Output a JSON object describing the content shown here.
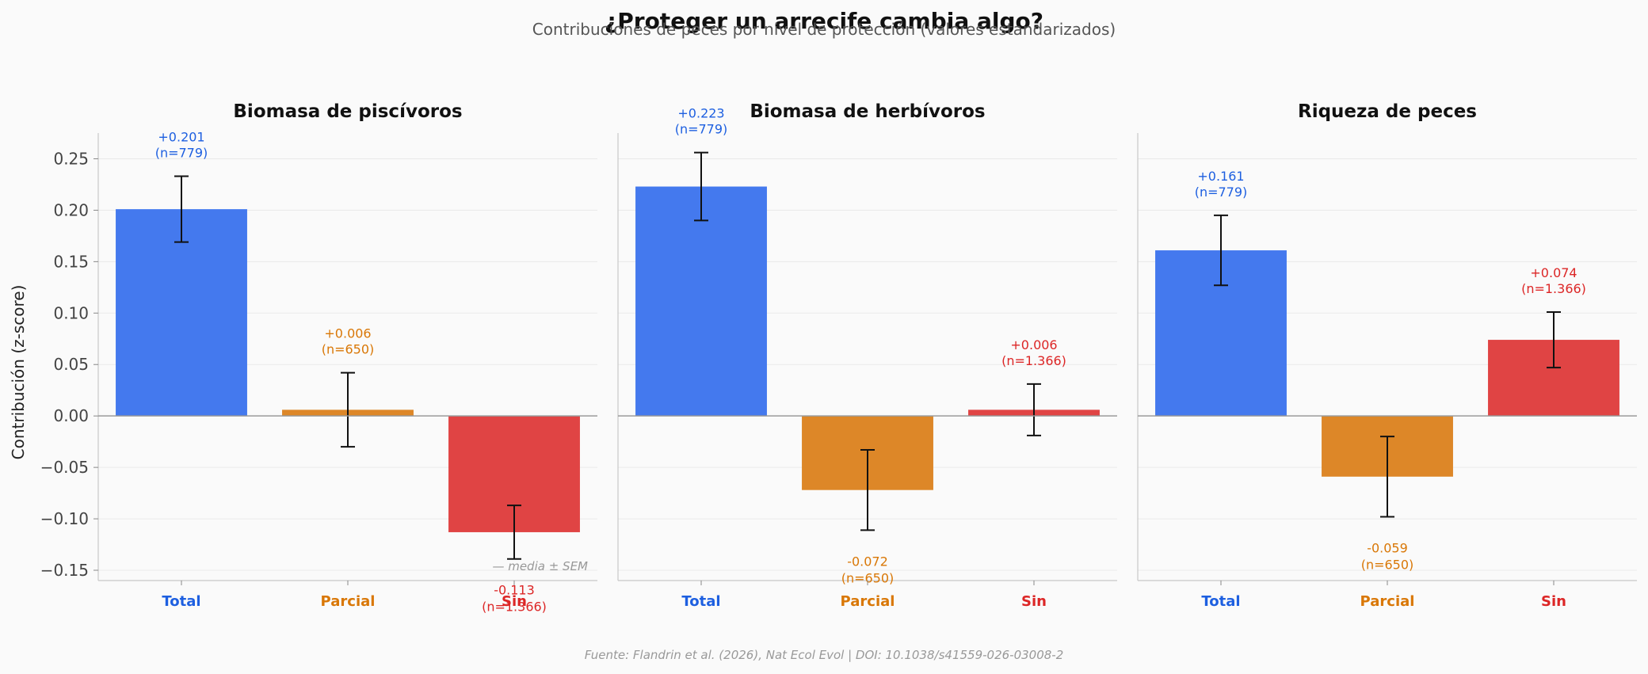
{
  "header": {
    "title": "¿Proteger un arrecife cambia algo?",
    "subtitle": "Contribuciones de peces por nivel de protección (valores estandarizados)"
  },
  "ylabel": "Contribución (z-score)",
  "legend_note": "— media ± SEM",
  "source": "Fuente: Flandrin et al. (2026), Nat Ecol Evol | DOI: 10.1038/s41559-026-03008-2",
  "colors": {
    "Total": "#1d5fe0",
    "Parcial": "#d97706",
    "Sin": "#dc2626",
    "bar_Total": "#4479ee",
    "bar_Parcial": "#dd8728",
    "bar_Sin": "#e04444"
  },
  "chart_data": [
    {
      "type": "bar",
      "title": "Biomasa de piscívoros",
      "categories": [
        "Total",
        "Parcial",
        "Sin"
      ],
      "values": [
        0.201,
        0.006,
        -0.113
      ],
      "sem": [
        0.032,
        0.036,
        0.026
      ],
      "value_labels": [
        "+0.201",
        "+0.006",
        "-0.113"
      ],
      "n_labels": [
        "(n=779)",
        "(n=650)",
        "(n=1.366)"
      ],
      "ylim": [
        -0.16,
        0.275
      ],
      "yticks": [
        "0.25",
        "0.20",
        "0.15",
        "0.10",
        "0.05",
        "0.00",
        "−0.05",
        "−0.10",
        "−0.15"
      ],
      "ylabel": "Contribución (z-score)"
    },
    {
      "type": "bar",
      "title": "Biomasa de herbívoros",
      "categories": [
        "Total",
        "Parcial",
        "Sin"
      ],
      "values": [
        0.223,
        -0.072,
        0.006
      ],
      "sem": [
        0.033,
        0.039,
        0.025
      ],
      "value_labels": [
        "+0.223",
        "-0.072",
        "+0.006"
      ],
      "n_labels": [
        "(n=779)",
        "(n=650)",
        "(n=1.366)"
      ],
      "ylim": [
        -0.16,
        0.275
      ]
    },
    {
      "type": "bar",
      "title": "Riqueza de peces",
      "categories": [
        "Total",
        "Parcial",
        "Sin"
      ],
      "values": [
        0.161,
        -0.059,
        0.074
      ],
      "sem": [
        0.034,
        0.039,
        0.027
      ],
      "value_labels": [
        "+0.161",
        "-0.059",
        "+0.074"
      ],
      "n_labels": [
        "(n=779)",
        "(n=650)",
        "(n=1.366)"
      ],
      "ylim": [
        -0.16,
        0.275
      ]
    }
  ]
}
